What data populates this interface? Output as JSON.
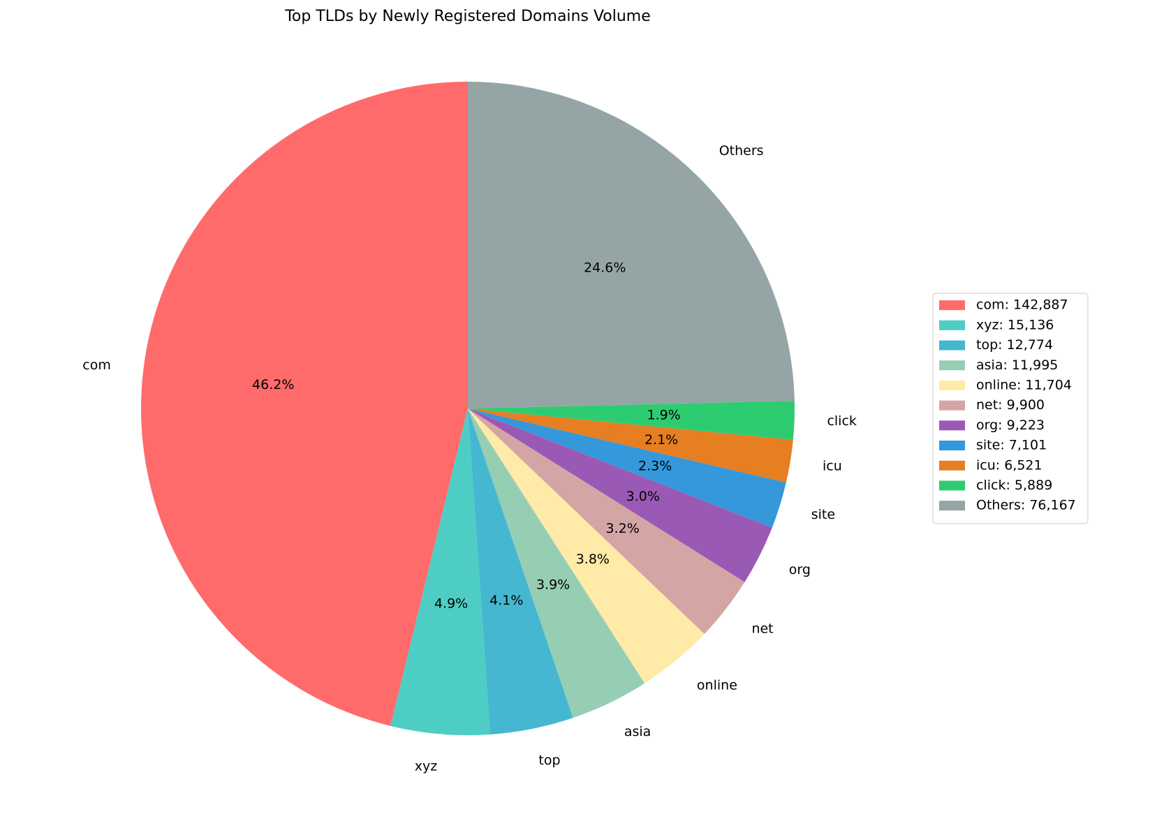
{
  "chart_data": {
    "type": "pie",
    "title": "Top TLDs by Newly Registered Domains Volume",
    "categories": [
      "com",
      "xyz",
      "top",
      "asia",
      "online",
      "net",
      "org",
      "site",
      "icu",
      "click",
      "Others"
    ],
    "values": [
      142887,
      15136,
      12774,
      11995,
      11704,
      9900,
      9223,
      7101,
      6521,
      5889,
      76167
    ],
    "percent_labels": [
      "46.2%",
      "4.9%",
      "4.1%",
      "3.9%",
      "3.8%",
      "3.2%",
      "3.0%",
      "2.3%",
      "2.1%",
      "1.9%",
      "24.6%"
    ],
    "legend_labels": [
      "com: 142,887",
      "xyz: 15,136",
      "top: 12,774",
      "asia: 11,995",
      "online: 11,704",
      "net: 9,900",
      "org: 9,223",
      "site: 7,101",
      "icu: 6,521",
      "click: 5,889",
      "Others: 76,167"
    ],
    "colors": [
      "#ff6b6b",
      "#4ecdc4",
      "#45b7d1",
      "#96ceb4",
      "#ffeaa7",
      "#d4a5a5",
      "#9b59b6",
      "#3498db",
      "#e67e22",
      "#2ecc71",
      "#95a5a6"
    ],
    "legend": "right"
  }
}
